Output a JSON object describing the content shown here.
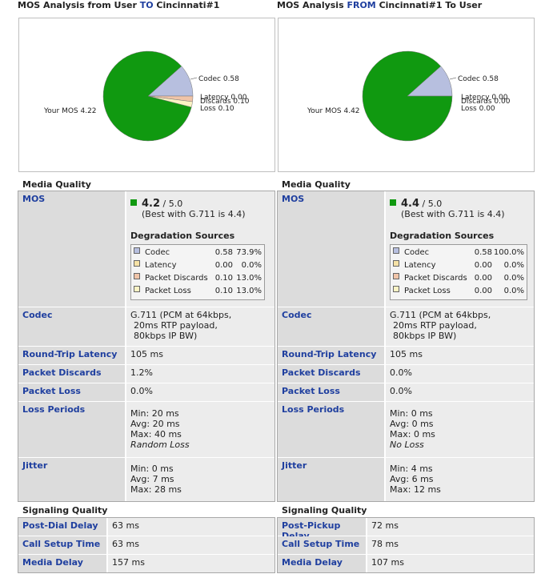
{
  "left": {
    "title_pre": "MOS Analysis from User ",
    "title_hl": "TO",
    "title_post": " Cincinnati#1",
    "pie": {
      "your_mos_label": "Your MOS 4.22",
      "slices": [
        {
          "name": "Your MOS",
          "value": 4.22,
          "color": "#109910"
        },
        {
          "name": "Codec",
          "value": 0.58,
          "color": "#b7bfdf"
        },
        {
          "name": "Latency",
          "value": 0.0,
          "color": "#f6e2a6"
        },
        {
          "name": "Discards",
          "value": 0.1,
          "color": "#f0c4a8"
        },
        {
          "name": "Loss",
          "value": 0.1,
          "color": "#fbf3c4"
        }
      ],
      "labels": {
        "codec": "Codec 0.58",
        "latency": "Latency 0.00",
        "discards": "Discards 0.10",
        "loss": "Loss 0.10"
      }
    },
    "media_title": "Media Quality",
    "mos": {
      "label": "MOS",
      "value": "4.2",
      "max": " / 5.0",
      "best": "(Best with G.711 is 4.4)"
    },
    "deg_title": "Degradation Sources",
    "deg": [
      {
        "name": "Codec",
        "value": "0.58",
        "pct": "73.9%",
        "color": "#b7bfdf"
      },
      {
        "name": "Latency",
        "value": "0.00",
        "pct": "0.0%",
        "color": "#f6e2a6"
      },
      {
        "name": "Packet Discards",
        "value": "0.10",
        "pct": "13.0%",
        "color": "#f0c4a8"
      },
      {
        "name": "Packet Loss",
        "value": "0.10",
        "pct": "13.0%",
        "color": "#fbf3c4"
      }
    ],
    "codec": {
      "label": "Codec",
      "l1": "G.711 (PCM at 64kbps,",
      "l2": "20ms RTP payload,",
      "l3": "80kbps IP BW)"
    },
    "rtl": {
      "label": "Round-Trip Latency",
      "value": "105 ms"
    },
    "discards": {
      "label": "Packet Discards",
      "value": "1.2%"
    },
    "loss": {
      "label": "Packet Loss",
      "value": "0.0%"
    },
    "loss_periods": {
      "label": "Loss Periods",
      "min": "Min:  20 ms",
      "avg": "Avg:  20 ms",
      "max": "Max:  40 ms",
      "type": "Random Loss"
    },
    "jitter": {
      "label": "Jitter",
      "min": "Min:  0 ms",
      "avg": "Avg:  7 ms",
      "max": "Max: 28 ms"
    },
    "sig_title": "Signaling Quality",
    "sig": [
      {
        "label": "Post-Dial Delay",
        "value": "63 ms"
      },
      {
        "label": "Call Setup Time",
        "value": "63 ms"
      },
      {
        "label": "Media Delay",
        "value": "157 ms"
      }
    ]
  },
  "right": {
    "title_pre": "MOS Analysis ",
    "title_hl": "FROM",
    "title_post": " Cincinnati#1 To User",
    "pie": {
      "your_mos_label": "Your MOS 4.42",
      "slices": [
        {
          "name": "Your MOS",
          "value": 4.42,
          "color": "#109910"
        },
        {
          "name": "Codec",
          "value": 0.58,
          "color": "#b7bfdf"
        },
        {
          "name": "Latency",
          "value": 0.0,
          "color": "#f6e2a6"
        },
        {
          "name": "Discards",
          "value": 0.0,
          "color": "#f0c4a8"
        },
        {
          "name": "Loss",
          "value": 0.0,
          "color": "#fbf3c4"
        }
      ],
      "labels": {
        "codec": "Codec 0.58",
        "latency": "Latency 0.00",
        "discards": "Discards 0.00",
        "loss": "Loss 0.00"
      }
    },
    "media_title": "Media Quality",
    "mos": {
      "label": "MOS",
      "value": "4.4",
      "max": " / 5.0",
      "best": "(Best with G.711 is 4.4)"
    },
    "deg_title": "Degradation Sources",
    "deg": [
      {
        "name": "Codec",
        "value": "0.58",
        "pct": "100.0%",
        "color": "#b7bfdf"
      },
      {
        "name": "Latency",
        "value": "0.00",
        "pct": "0.0%",
        "color": "#f6e2a6"
      },
      {
        "name": "Packet Discards",
        "value": "0.00",
        "pct": "0.0%",
        "color": "#f0c4a8"
      },
      {
        "name": "Packet Loss",
        "value": "0.00",
        "pct": "0.0%",
        "color": "#fbf3c4"
      }
    ],
    "codec": {
      "label": "Codec",
      "l1": "G.711 (PCM at 64kbps,",
      "l2": "20ms RTP payload,",
      "l3": "80kbps IP BW)"
    },
    "rtl": {
      "label": "Round-Trip Latency",
      "value": "105 ms"
    },
    "discards": {
      "label": "Packet Discards",
      "value": "0.0%"
    },
    "loss": {
      "label": "Packet Loss",
      "value": "0.0%"
    },
    "loss_periods": {
      "label": "Loss Periods",
      "min": "Min:  0 ms",
      "avg": "Avg:  0 ms",
      "max": "Max:  0 ms",
      "type": "No Loss"
    },
    "jitter": {
      "label": "Jitter",
      "min": "Min:  4 ms",
      "avg": "Avg:  6 ms",
      "max": "Max: 12 ms"
    },
    "sig_title": "Signaling Quality",
    "sig": [
      {
        "label": "Post-Pickup Delay",
        "value": "72 ms"
      },
      {
        "label": "Call Setup Time",
        "value": "78 ms"
      },
      {
        "label": "Media Delay",
        "value": "107 ms"
      }
    ]
  },
  "mos_indicator_color": "#109910"
}
